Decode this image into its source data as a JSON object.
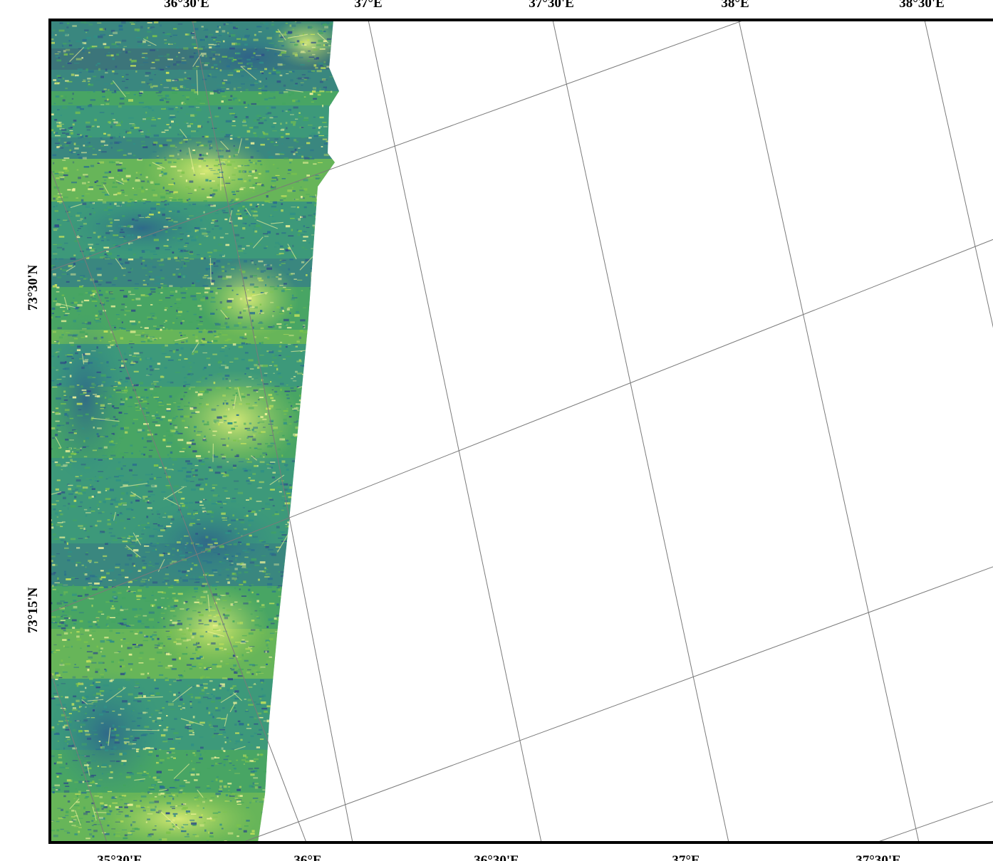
{
  "map": {
    "top_lon_labels": [
      "36°30'E",
      "37°E",
      "37°30'E",
      "38°E",
      "38°30'E"
    ],
    "bottom_lon_labels": [
      "35°30'E",
      "36°E",
      "36°30'E",
      "37°E",
      "37°30'E"
    ],
    "left_lat_labels": [
      "73°30'N",
      "73°15'N"
    ],
    "colors": {
      "frame": "#000000",
      "graticule": "#7a7a7a",
      "background": "#ffffff",
      "colormap": [
        "#2e4e87",
        "#2a6f8f",
        "#2f8f86",
        "#43a55f",
        "#7cc34b",
        "#c2e05c",
        "#f5f59a"
      ]
    },
    "colormap_name": "viridis-like"
  }
}
